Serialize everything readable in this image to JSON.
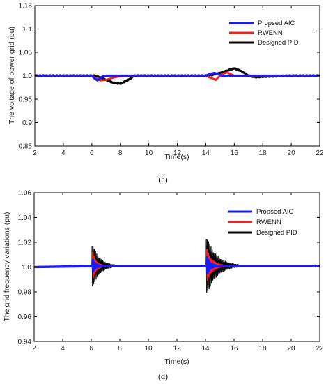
{
  "chart_data": [
    {
      "type": "line",
      "caption": "(c)",
      "xlabel": "Time(s)",
      "ylabel": "The voltage of power grid (pu)",
      "xlim": [
        2,
        22
      ],
      "ylim": [
        0.85,
        1.15
      ],
      "xticks": [
        "2",
        "4",
        "6",
        "8",
        "10",
        "12",
        "14",
        "16",
        "18",
        "20",
        "22"
      ],
      "yticks": [
        "0.85",
        "0.9",
        "0.95",
        "1.0",
        "1.05",
        "1.1",
        "1.15"
      ],
      "grid": false,
      "legend_position": "top-right",
      "series": [
        {
          "name": "Designed PID",
          "color": "#000000",
          "x": [
            2,
            3,
            4,
            5,
            6,
            6.3,
            7,
            7.5,
            8,
            8.5,
            9,
            10,
            11,
            12,
            13,
            14,
            14.5,
            15,
            15.5,
            16,
            16.5,
            17,
            17.5,
            18,
            19,
            20,
            21,
            22
          ],
          "y": [
            1.0,
            1.0,
            1.0,
            1.0,
            1.0,
            1.0,
            0.991,
            0.985,
            0.983,
            0.99,
            1.0,
            1.0,
            1.0,
            1.0,
            1.0,
            1.0,
            1.002,
            1.006,
            1.011,
            1.016,
            1.01,
            1.0,
            0.997,
            0.998,
            0.999,
            1.0,
            1.0,
            1.0
          ]
        },
        {
          "name": "RWENN",
          "color": "#ee2222",
          "x": [
            2,
            4,
            6,
            6.3,
            6.6,
            7,
            7.5,
            8,
            9,
            10,
            12,
            14,
            14.3,
            14.7,
            15.1,
            15.5,
            16,
            17,
            18,
            20,
            22
          ],
          "y": [
            1.0,
            1.0,
            1.0,
            0.994,
            0.99,
            0.991,
            0.996,
            0.999,
            1.0,
            1.0,
            1.0,
            1.0,
            0.996,
            0.991,
            1.003,
            1.007,
            1.0,
            1.0,
            1.0,
            1.0,
            1.0
          ]
        },
        {
          "name": "Propsed AIC",
          "color": "#1a1aff",
          "x": [
            2,
            4,
            6,
            6.2,
            6.4,
            6.6,
            6.8,
            7,
            8,
            10,
            12,
            14,
            14.3,
            14.6,
            14.9,
            15.2,
            15.5,
            16,
            18,
            20,
            22
          ],
          "y": [
            1.0,
            1.0,
            1.0,
            0.994,
            0.99,
            0.995,
            0.999,
            1.0,
            1.0,
            1.0,
            1.0,
            1.0,
            1.004,
            1.006,
            1.003,
            0.999,
            1.0,
            1.0,
            1.0,
            1.0,
            1.0
          ]
        }
      ]
    },
    {
      "type": "line",
      "caption": "(d)",
      "xlabel": "Time(s)",
      "ylabel": "The grid frequency variations (pu)",
      "xlim": [
        2,
        22
      ],
      "ylim": [
        0.94,
        1.06
      ],
      "xticks": [
        "2",
        "4",
        "6",
        "8",
        "10",
        "12",
        "14",
        "16",
        "18",
        "20",
        "22"
      ],
      "yticks": [
        "0.94",
        "0.96",
        "0.98",
        "1.0",
        "1.02",
        "1.04",
        "1.06"
      ],
      "grid": false,
      "legend_position": "top-right",
      "series": [
        {
          "name": "Designed PID",
          "color": "#000000",
          "baseline": [
            [
              2,
              1.0
            ],
            [
              7,
              1.001
            ],
            [
              14,
              1.001
            ],
            [
              22,
              1.001
            ]
          ],
          "bursts": [
            {
              "start": 6.05,
              "end": 7.7,
              "amplitude": 0.019
            },
            {
              "start": 14.05,
              "end": 16.3,
              "amplitude": 0.025
            }
          ]
        },
        {
          "name": "RWENN",
          "color": "#ee2222",
          "baseline": [
            [
              2,
              1.0
            ],
            [
              7,
              1.001
            ],
            [
              14,
              1.001
            ],
            [
              22,
              1.001
            ]
          ],
          "bursts": [
            {
              "start": 6.1,
              "end": 6.9,
              "amplitude": 0.011
            },
            {
              "start": 14.1,
              "end": 15.3,
              "amplitude": 0.013
            }
          ]
        },
        {
          "name": "Propsed AIC",
          "color": "#1a1aff",
          "baseline": [
            [
              2,
              1.0
            ],
            [
              7,
              1.001
            ],
            [
              14,
              1.001
            ],
            [
              22,
              1.001
            ]
          ],
          "bursts": [
            {
              "start": 6.1,
              "end": 6.7,
              "amplitude": 0.005
            },
            {
              "start": 14.1,
              "end": 14.8,
              "amplitude": 0.007
            }
          ]
        }
      ]
    }
  ]
}
